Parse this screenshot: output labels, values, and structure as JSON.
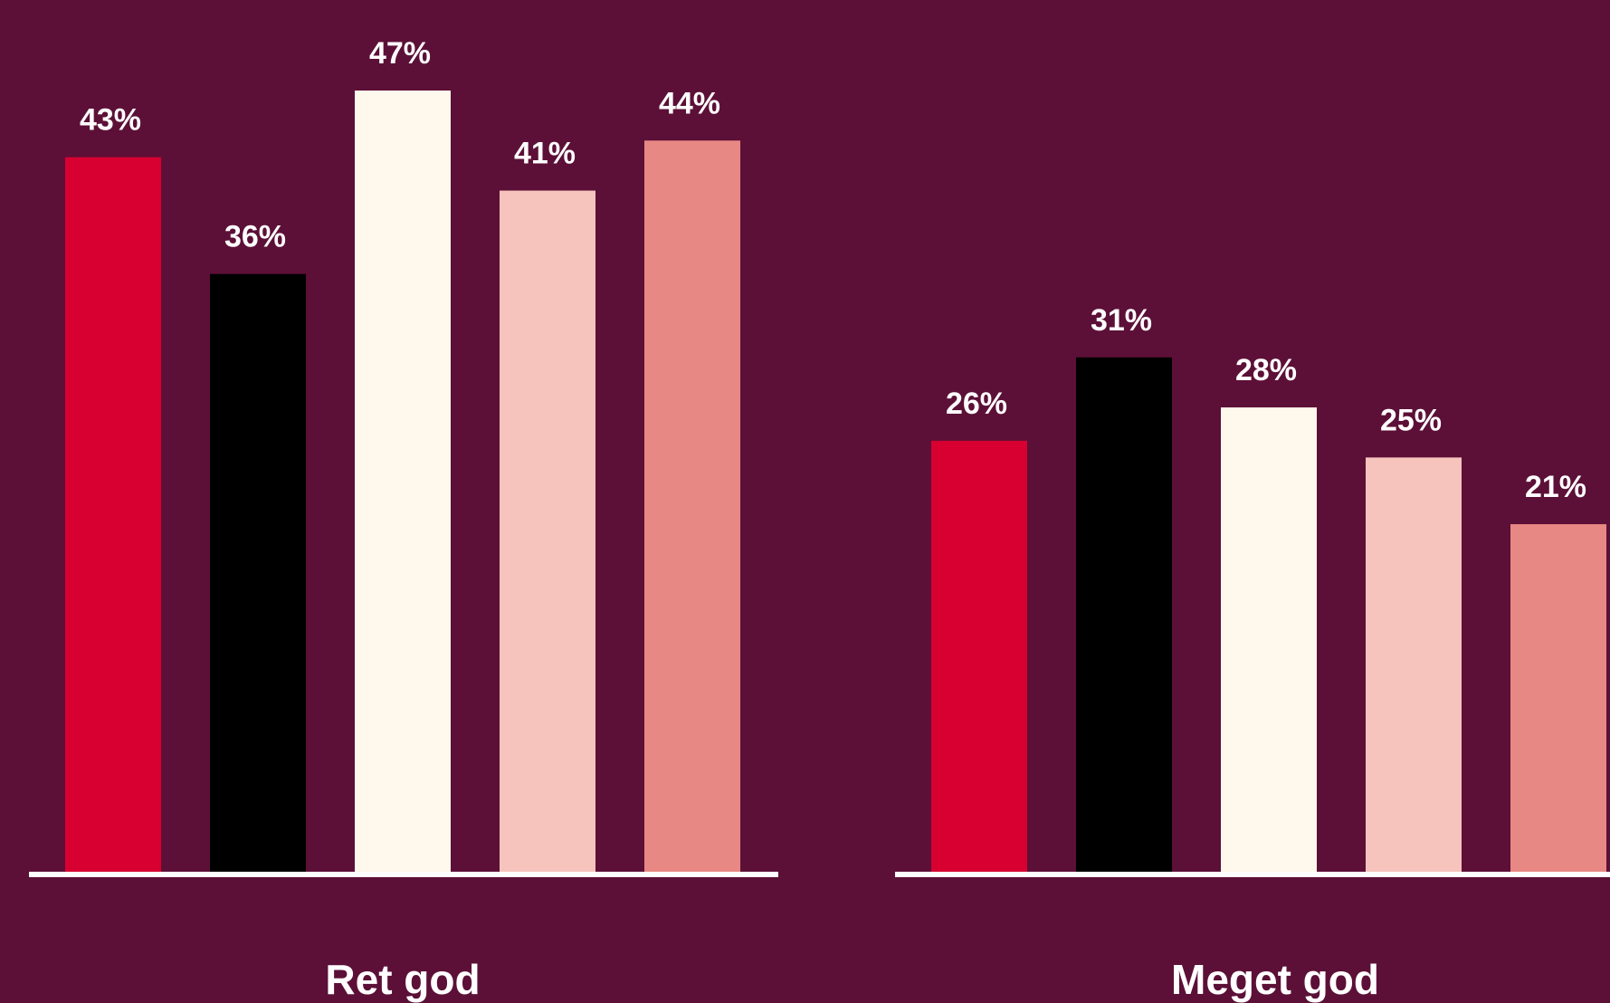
{
  "chart_data": {
    "type": "bar",
    "categories": [
      "Ret god",
      "Meget god"
    ],
    "series": [
      {
        "values": [
          43,
          26
        ],
        "labels": [
          "43%",
          "26%"
        ],
        "color": "#d80030"
      },
      {
        "values": [
          36,
          31
        ],
        "labels": [
          "36%",
          "31%"
        ],
        "color": "#000000"
      },
      {
        "values": [
          47,
          28
        ],
        "labels": [
          "47%",
          "28%"
        ],
        "color": "#fff8ec"
      },
      {
        "values": [
          41,
          25
        ],
        "labels": [
          "41%",
          "25%"
        ],
        "color": "#f7c3bd"
      },
      {
        "values": [
          44,
          21
        ],
        "labels": [
          "44%",
          "21%"
        ],
        "color": "#e88884"
      }
    ],
    "ylim": [
      0,
      47
    ],
    "value_format": "percent",
    "legend": "none",
    "grid": false
  },
  "colors": {
    "background": "#5c1037",
    "baseline": "#ffffff",
    "label": "#ffffff"
  }
}
